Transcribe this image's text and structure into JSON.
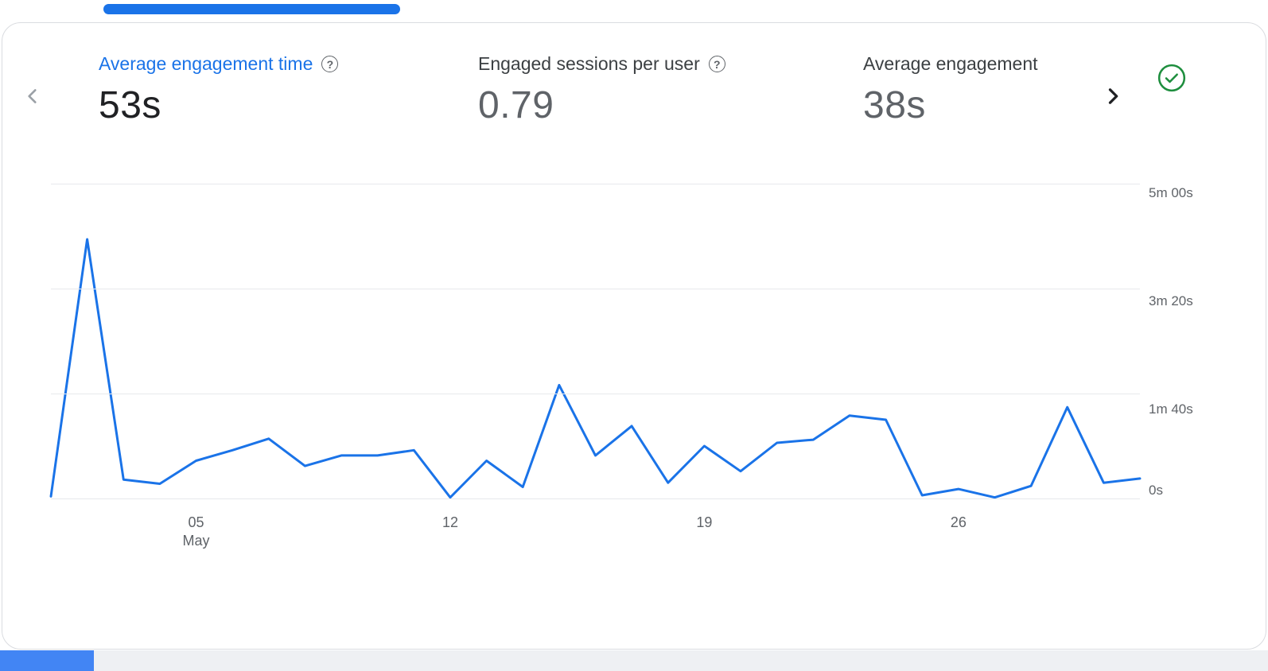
{
  "colors": {
    "accent_blue": "#1a73e8",
    "line_blue": "#1a73e8",
    "text_dark": "#202124",
    "label_gray": "#3c4043",
    "value_gray": "#5f6368",
    "grid_gray": "#e7e9ec",
    "green_check": "#1e8e3e",
    "card_border": "#dadce0",
    "bottom_fragment_blue": "#4285f4",
    "bottom_fragment_gray": "#eef0f3"
  },
  "icons": {
    "help_glyph": "?",
    "prev": "chevron-left",
    "next": "chevron-right",
    "status": "check-circle"
  },
  "metrics": [
    {
      "label": "Average engagement time",
      "value": "53s",
      "selected": true,
      "has_help": true
    },
    {
      "label": "Engaged sessions per user",
      "value": "0.79",
      "selected": false,
      "has_help": true
    },
    {
      "label": "Average engagement",
      "value": "38s",
      "selected": false,
      "has_help": false
    }
  ],
  "chart_data": {
    "type": "line",
    "title": "Average engagement time",
    "unit": "seconds",
    "x": [
      1,
      2,
      3,
      4,
      5,
      6,
      7,
      8,
      9,
      10,
      11,
      12,
      13,
      14,
      15,
      16,
      17,
      18,
      19,
      20,
      21,
      22,
      23,
      24,
      25,
      26,
      27,
      28,
      29,
      30,
      31
    ],
    "values": [
      2,
      247,
      18,
      14,
      36,
      46,
      57,
      31,
      41,
      41,
      46,
      1,
      36,
      11,
      108,
      41,
      69,
      15,
      50,
      26,
      53,
      56,
      79,
      75,
      3,
      9,
      1,
      12,
      87,
      15,
      19
    ],
    "ylim": [
      0,
      300
    ],
    "y_ticks": [
      {
        "value": 0,
        "label": "0s"
      },
      {
        "value": 100,
        "label": "1m 40s"
      },
      {
        "value": 200,
        "label": "3m 20s"
      },
      {
        "value": 300,
        "label": "5m 00s"
      }
    ],
    "x_ticks": [
      {
        "day": 5,
        "label": "05",
        "sublabel": "May"
      },
      {
        "day": 12,
        "label": "12"
      },
      {
        "day": 19,
        "label": "19"
      },
      {
        "day": 26,
        "label": "26"
      }
    ],
    "legend": false,
    "grid": "horizontal"
  }
}
